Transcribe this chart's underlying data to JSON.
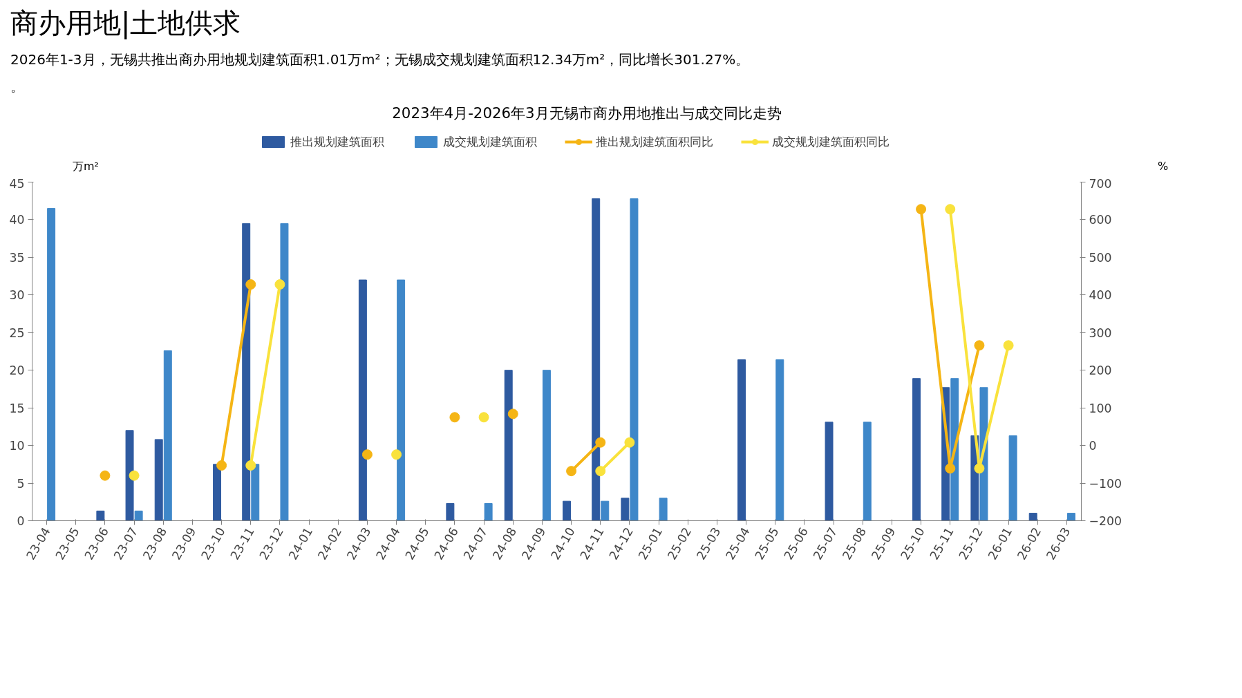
{
  "chart_data": {
    "type": "bar",
    "title": "2023年4月-2026年3月无锡市商办用地推出与成交同比走势",
    "subtitle": "商办用地|土地供求",
    "annotations": [
      "2026年1-3月，无锡共推出商办用地规划建筑面积1.01万m²；无锡成交规划建筑面积12.34万m²，同比增长301.27%。",
      "。"
    ],
    "ylabel": "万m²",
    "y2label": "%",
    "categories": [
      "23-04",
      "23-05",
      "23-06",
      "23-07",
      "23-08",
      "23-09",
      "23-10",
      "23-11",
      "23-12",
      "24-01",
      "24-02",
      "24-03",
      "24-04",
      "24-05",
      "24-06",
      "24-07",
      "24-08",
      "24-09",
      "24-10",
      "24-11",
      "24-12",
      "25-01",
      "25-02",
      "25-03",
      "25-04",
      "25-05",
      "25-06",
      "25-07",
      "25-08",
      "25-09",
      "25-10",
      "25-11",
      "25-12",
      "26-01",
      "26-02",
      "26-03"
    ],
    "series": [
      {
        "name": "推出规划建筑面积",
        "color": "#2e5aa0",
        "values": [
          null,
          null,
          1.3,
          12,
          10.8,
          null,
          7.5,
          39.5,
          null,
          null,
          null,
          32,
          null,
          null,
          2.3,
          null,
          20,
          null,
          2.6,
          42.8,
          3,
          null,
          null,
          null,
          21.4,
          null,
          null,
          13.1,
          null,
          null,
          18.9,
          17.7,
          11.3,
          null,
          1.0,
          null
        ]
      },
      {
        "name": "成交规划建筑面积",
        "color": "#3e87c9",
        "values": [
          41.5,
          null,
          null,
          1.3,
          22.6,
          null,
          null,
          7.5,
          39.5,
          null,
          null,
          null,
          32,
          null,
          null,
          2.3,
          null,
          20,
          null,
          2.6,
          42.8,
          3,
          null,
          null,
          null,
          21.4,
          null,
          null,
          13.1,
          null,
          null,
          18.9,
          17.7,
          11.3,
          null,
          1.0
        ]
      },
      {
        "name": "推出规划建筑面积同比",
        "type": "line",
        "axis": "y2",
        "color": "#f5b515",
        "values": [
          null,
          null,
          -80,
          null,
          null,
          null,
          -53,
          428,
          null,
          null,
          null,
          -24,
          null,
          null,
          75,
          null,
          84,
          null,
          -68,
          8,
          null,
          null,
          null,
          null,
          null,
          null,
          null,
          null,
          null,
          null,
          628,
          -61,
          266,
          null,
          null,
          null
        ]
      },
      {
        "name": "成交规划建筑面积同比",
        "type": "line",
        "axis": "y2",
        "color": "#f9e23c",
        "values": [
          null,
          null,
          null,
          -80,
          null,
          null,
          null,
          -53,
          428,
          null,
          null,
          null,
          -24,
          null,
          null,
          75,
          null,
          null,
          null,
          -68,
          8,
          null,
          null,
          null,
          null,
          null,
          null,
          null,
          null,
          null,
          null,
          628,
          -61,
          266,
          null,
          null
        ]
      }
    ],
    "ylim": [
      0,
      45
    ],
    "yticks": [
      0,
      5,
      10,
      15,
      20,
      25,
      30,
      35,
      40,
      45
    ],
    "y2lim": [
      -200,
      700
    ],
    "y2ticks": [
      -200,
      -100,
      0,
      100,
      200,
      300,
      400,
      500,
      600,
      700
    ],
    "marker": "circle",
    "legend": "top"
  }
}
